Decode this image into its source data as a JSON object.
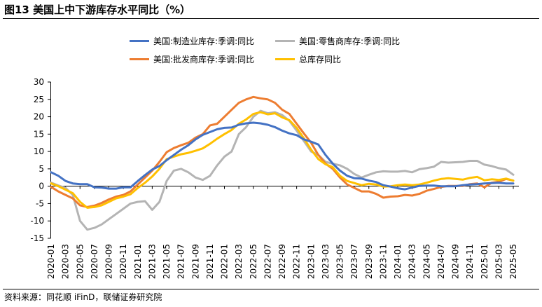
{
  "title": "图13 美国上中下游库存水平同比（%）",
  "source": "资料来源：同花顺 iFinD，联储证券研究院",
  "colors": {
    "manufacturing": "#4472c4",
    "retail": "#b4b4b4",
    "wholesale": "#ed7d31",
    "total": "#ffc000"
  },
  "chart_data": {
    "type": "line",
    "ylim": [
      -15,
      30
    ],
    "yticks": [
      -15,
      -10,
      -5,
      0,
      5,
      10,
      15,
      20,
      25,
      30
    ],
    "grid": false,
    "legend_position": "top",
    "xticks": [
      "2020-01",
      "2020-03",
      "2020-05",
      "2020-07",
      "2020-09",
      "2020-11",
      "2021-01",
      "2021-03",
      "2021-05",
      "2021-07",
      "2021-09",
      "2021-11",
      "2022-01",
      "2022-03",
      "2022-05",
      "2022-07",
      "2022-09",
      "2022-11",
      "2023-01",
      "2023-03",
      "2023-05",
      "2023-07",
      "2023-09",
      "2023-11",
      "2024-01",
      "2024-03",
      "2024-05",
      "2024-07",
      "2024-09",
      "2024-11",
      "2025-01",
      "2025-03",
      "2025-05"
    ],
    "x": [
      "2020-01",
      "2020-02",
      "2020-03",
      "2020-04",
      "2020-05",
      "2020-06",
      "2020-07",
      "2020-08",
      "2020-09",
      "2020-10",
      "2020-11",
      "2020-12",
      "2021-01",
      "2021-02",
      "2021-03",
      "2021-04",
      "2021-05",
      "2021-06",
      "2021-07",
      "2021-08",
      "2021-09",
      "2021-10",
      "2021-11",
      "2021-12",
      "2022-01",
      "2022-02",
      "2022-03",
      "2022-04",
      "2022-05",
      "2022-06",
      "2022-07",
      "2022-08",
      "2022-09",
      "2022-10",
      "2022-11",
      "2022-12",
      "2023-01",
      "2023-02",
      "2023-03",
      "2023-04",
      "2023-05",
      "2023-06",
      "2023-07",
      "2023-08",
      "2023-09",
      "2023-10",
      "2023-11",
      "2023-12",
      "2024-01",
      "2024-02",
      "2024-03",
      "2024-04",
      "2024-05",
      "2024-06",
      "2024-07",
      "2024-08",
      "2024-09",
      "2024-10",
      "2024-11",
      "2024-12",
      "2025-01",
      "2025-02",
      "2025-03",
      "2025-04",
      "2025-05"
    ],
    "series": [
      {
        "name": "美国:制造业库存:季调:同比",
        "color_key": "manufacturing",
        "values": [
          4,
          3,
          1.5,
          0.8,
          0.6,
          0.6,
          -0.3,
          -0.4,
          -0.7,
          -0.7,
          -0.3,
          -0.3,
          1.5,
          3.2,
          4.8,
          5.8,
          7.5,
          9,
          10.5,
          11.8,
          13.5,
          14.8,
          15.6,
          16.4,
          16.8,
          16.9,
          17.7,
          18.1,
          18.3,
          18.1,
          17.7,
          17,
          16,
          15.2,
          14.7,
          13.5,
          12.8,
          12,
          9,
          6.5,
          4.5,
          3,
          2.3,
          2.2,
          1.6,
          1.2,
          0.3,
          -0.1,
          -0.6,
          -0.9,
          -0.4,
          0.1,
          0.2,
          0.2,
          0,
          0,
          0,
          0.3,
          0.5,
          0.6,
          0.8,
          0.9,
          1,
          0.8,
          0.8
        ]
      },
      {
        "name": "美国:零售商库存:季调:同比",
        "color_key": "retail",
        "values": [
          1,
          0.2,
          -0.5,
          -2.5,
          -10,
          -12.5,
          -12,
          -11,
          -9.5,
          -8,
          -6.5,
          -5,
          -4.5,
          -4.3,
          -6.8,
          -4.5,
          1.5,
          4.5,
          5,
          4,
          2.5,
          1.8,
          3,
          6,
          8.5,
          10,
          15,
          17,
          20,
          21.7,
          21,
          21.3,
          20.5,
          18.8,
          16,
          13,
          10,
          9,
          7,
          6.5,
          6,
          5,
          3.5,
          2.5,
          3.3,
          4,
          4.3,
          4.2,
          4.2,
          4.4,
          4,
          4.9,
          5.2,
          5.6,
          7,
          6.8,
          6.9,
          7,
          7.3,
          7.3,
          6.2,
          5.8,
          5.2,
          4.8,
          3.3
        ]
      },
      {
        "name": "美国:批发商库存:季调:同比",
        "color_key": "wholesale",
        "values": [
          -0.2,
          -1.5,
          -2.5,
          -3.5,
          -5.5,
          -6,
          -5.6,
          -4.8,
          -3.8,
          -3,
          -2.5,
          -1.5,
          0.5,
          2.5,
          4.5,
          7,
          9.8,
          11,
          11.8,
          12.5,
          14,
          15,
          17.5,
          18,
          20,
          22,
          24,
          25,
          25.7,
          25.3,
          25,
          24,
          22,
          20.8,
          18,
          15.2,
          12.5,
          9,
          6.5,
          5,
          2.5,
          0.5,
          -0.5,
          -1.5,
          -1.5,
          -2.2,
          -3.3,
          -3,
          -2.9,
          -2.5,
          -2.7,
          -2.2,
          -1.3,
          -0.8,
          -0.2,
          0.1,
          0.1,
          0.1,
          0.6,
          0.8,
          -0.3,
          1,
          1.3,
          2.1,
          1.6
        ]
      },
      {
        "name": "总库存同比",
        "color_key": "total",
        "values": [
          0.8,
          0,
          -1,
          -2,
          -4.5,
          -6.2,
          -6,
          -5.5,
          -4.5,
          -3.5,
          -3,
          -2.3,
          -0.5,
          1,
          2.8,
          5,
          7.8,
          8.5,
          9.2,
          9.6,
          10.2,
          10.9,
          12.2,
          13.7,
          15,
          16.2,
          18,
          19.2,
          20.8,
          21.3,
          20.7,
          21,
          19.8,
          19,
          16.8,
          13.8,
          10.5,
          7.8,
          6.3,
          5.5,
          3,
          1.5,
          0.9,
          0.3,
          0.7,
          0.5,
          -0.1,
          0,
          0.3,
          0.5,
          0.3,
          0.5,
          1,
          1.6,
          2.1,
          2.3,
          2.1,
          1.9,
          2.4,
          2.7,
          1.7,
          2,
          1.8,
          2.2,
          1.6
        ]
      }
    ]
  }
}
